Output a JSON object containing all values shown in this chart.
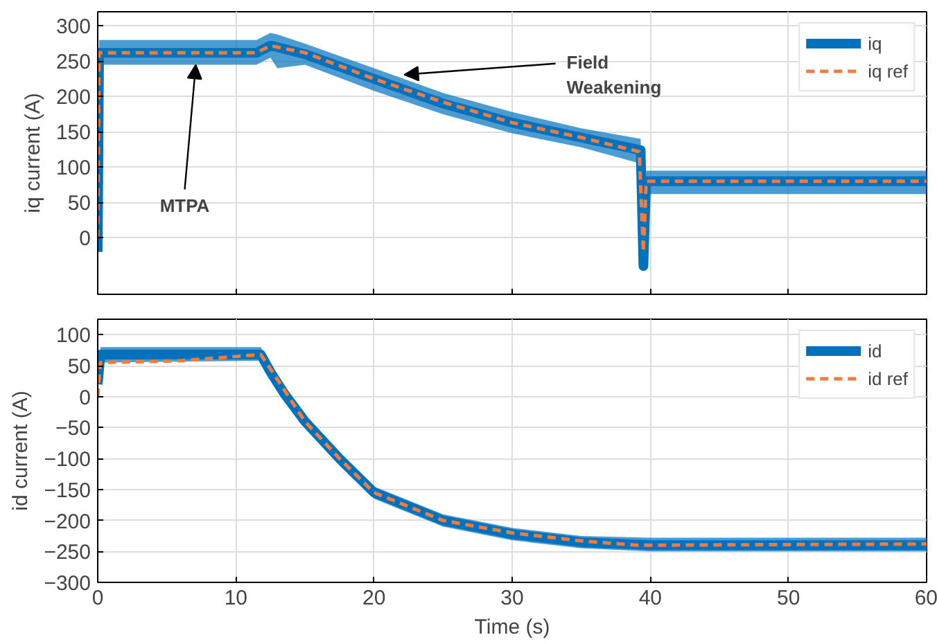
{
  "chart_data": [
    {
      "type": "line",
      "ylabel": "iq current (A)",
      "xlim": [
        0,
        60
      ],
      "xticks": [
        0,
        10,
        20,
        30,
        40,
        50,
        60
      ],
      "ylim": [
        -80,
        320
      ],
      "yticks": [
        0,
        50,
        100,
        150,
        200,
        250,
        300
      ],
      "grid": true,
      "legend": "top right",
      "tick_labels": "y",
      "annotations": [
        {
          "text": "MTPA",
          "x": 7.1,
          "y": 245
        },
        {
          "text": "Field\nWeakening",
          "x": 22.2,
          "y": 231
        }
      ],
      "series": [
        {
          "name": "iq",
          "color": "#0072bd",
          "line_style": "solid",
          "x": [
            0,
            0.1,
            11.5,
            12.5,
            13,
            15,
            20,
            25,
            30,
            35,
            39.3,
            39.5,
            39.7,
            40,
            60
          ],
          "values": [
            -20,
            262,
            262,
            272,
            270,
            260,
            225,
            190,
            163,
            142,
            124,
            -40,
            80,
            80,
            80
          ],
          "lower": [
            -20,
            245,
            245,
            255,
            240,
            245,
            208,
            175,
            148,
            128,
            105,
            -40,
            62,
            62,
            62
          ],
          "upper": [
            -20,
            280,
            280,
            290,
            288,
            275,
            240,
            205,
            178,
            155,
            140,
            -40,
            95,
            95,
            95
          ]
        },
        {
          "name": "iq ref",
          "color": "#f47b3b",
          "line_style": "dashed",
          "x": [
            0,
            0.1,
            11.5,
            12.5,
            15,
            20,
            25,
            30,
            35,
            39.2,
            39.5,
            39.7,
            60
          ],
          "values": [
            0,
            262,
            262,
            272,
            262,
            225,
            192,
            163,
            142,
            122,
            -20,
            80,
            80
          ]
        }
      ]
    },
    {
      "type": "line",
      "ylabel": "id current (A)",
      "xlabel": "Time (s)",
      "xlim": [
        0,
        60
      ],
      "xticks": [
        0,
        10,
        20,
        30,
        40,
        50,
        60
      ],
      "ylim": [
        -300,
        125
      ],
      "yticks": [
        -300,
        -250,
        -200,
        -150,
        -100,
        -50,
        0,
        50,
        100
      ],
      "grid": true,
      "legend": "top right",
      "series": [
        {
          "name": "id",
          "color": "#0072bd",
          "line_style": "solid",
          "x": [
            0,
            0.2,
            11.8,
            12.5,
            13.5,
            15,
            17.5,
            20,
            25,
            30,
            35,
            40,
            60
          ],
          "values": [
            20,
            68,
            68,
            40,
            5,
            -40,
            -100,
            -155,
            -200,
            -222,
            -235,
            -240,
            -240
          ],
          "lower": [
            20,
            55,
            58,
            30,
            -5,
            -50,
            -110,
            -165,
            -210,
            -232,
            -245,
            -250,
            -250
          ],
          "upper": [
            20,
            80,
            80,
            50,
            15,
            -30,
            -90,
            -145,
            -190,
            -212,
            -225,
            -228,
            -228
          ]
        },
        {
          "name": "id ref",
          "color": "#f47b3b",
          "line_style": "dashed",
          "x": [
            0,
            0.2,
            6,
            11.8,
            12.5,
            15,
            17.5,
            20,
            25,
            30,
            35,
            39,
            60
          ],
          "values": [
            0,
            55,
            58,
            68,
            45,
            -40,
            -100,
            -155,
            -200,
            -220,
            -233,
            -240,
            -238
          ]
        }
      ]
    }
  ]
}
